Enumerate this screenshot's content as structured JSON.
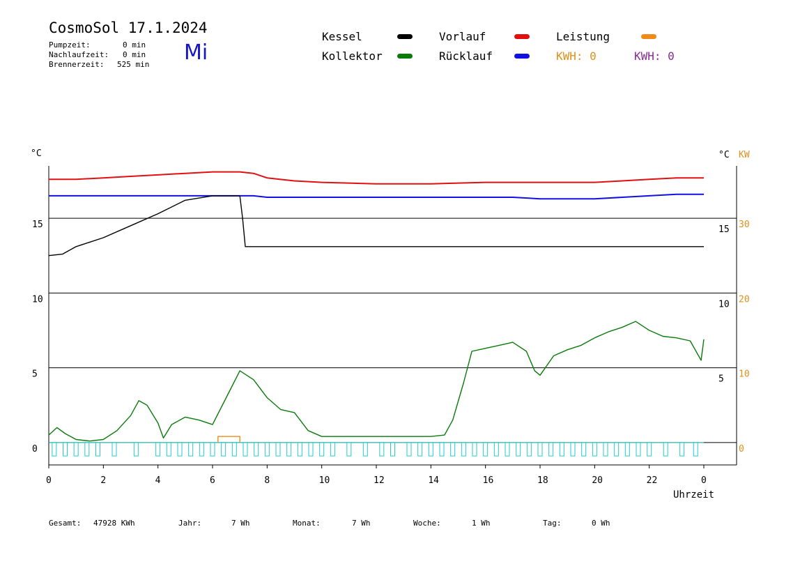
{
  "header": {
    "title": "CosmoSol 17.1.2024",
    "weekday": "Mi",
    "stats": [
      {
        "label": "Pumpzeit:",
        "value": "0 min"
      },
      {
        "label": "Nachlaufzeit:",
        "value": "0 min"
      },
      {
        "label": "Brennerzeit:",
        "value": "525 min"
      }
    ]
  },
  "legend": {
    "kessel": {
      "label": "Kessel",
      "color": "#000000"
    },
    "vorlauf": {
      "label": "Vorlauf",
      "color": "#e01010"
    },
    "leistung": {
      "label": "Leistung",
      "color": "#f08a18"
    },
    "kollektor": {
      "label": "Kollektor",
      "color": "#0a7a0a"
    },
    "ruecklauf": {
      "label": "Rücklauf",
      "color": "#1010e0"
    },
    "kwh_orange": "KWH: 0",
    "kwh_orange_color": "#e09018",
    "kwh_purple": "KWH: 0",
    "kwh_purple_color": "#8a2a9a"
  },
  "footer": {
    "gesamt_label": "Gesamt:",
    "gesamt_value": "47928 KWh",
    "jahr_label": "Jahr:",
    "jahr_value": "7 Wh",
    "monat_label": "Monat:",
    "monat_value": "7 Wh",
    "woche_label": "Woche:",
    "woche_value": "1 Wh",
    "tag_label": "Tag:",
    "tag_value": "0 Wh"
  },
  "chart_data": {
    "type": "line",
    "xlabel": "Uhrzeit",
    "ylabel_left": "°C",
    "ylabel_right_1": "°C",
    "ylabel_right_2": "KW",
    "xlim": [
      0,
      24
    ],
    "ylim": [
      -1.5,
      18.5
    ],
    "x_ticks": [
      "0",
      "2",
      "4",
      "6",
      "8",
      "10",
      "12",
      "14",
      "16",
      "18",
      "20",
      "22",
      "0"
    ],
    "y_ticks_left": [
      "0",
      "5",
      "10",
      "15"
    ],
    "y_ticks_right_temp": [
      "5",
      "10",
      "15"
    ],
    "y_ticks_right_kw": [
      "0",
      "10",
      "20",
      "30"
    ],
    "series": [
      {
        "name": "Vorlauf",
        "color": "#e01010",
        "x": [
          0,
          1,
          2,
          3,
          4,
          5,
          6,
          7,
          7.5,
          8,
          9,
          10,
          12,
          14,
          16,
          18,
          20,
          21,
          22,
          23,
          24
        ],
        "y": [
          17.6,
          17.6,
          17.7,
          17.8,
          17.9,
          18.0,
          18.1,
          18.1,
          18.0,
          17.7,
          17.5,
          17.4,
          17.3,
          17.3,
          17.4,
          17.4,
          17.4,
          17.5,
          17.6,
          17.7,
          17.7
        ]
      },
      {
        "name": "Rücklauf",
        "color": "#1010e0",
        "x": [
          0,
          2,
          4,
          6,
          7.5,
          8,
          10,
          12,
          14,
          16,
          17,
          18,
          19,
          20,
          22,
          23,
          24
        ],
        "y": [
          16.5,
          16.5,
          16.5,
          16.5,
          16.5,
          16.4,
          16.4,
          16.4,
          16.4,
          16.4,
          16.4,
          16.3,
          16.3,
          16.3,
          16.5,
          16.6,
          16.6
        ]
      },
      {
        "name": "Kessel",
        "color": "#000000",
        "x": [
          0,
          0.5,
          1,
          2,
          3,
          4,
          5,
          6,
          7,
          7.1,
          7.2,
          8,
          10,
          12,
          14,
          16,
          18,
          20,
          22,
          24
        ],
        "y": [
          12.5,
          12.6,
          13.1,
          13.7,
          14.5,
          15.3,
          16.2,
          16.5,
          16.5,
          15.0,
          13.1,
          13.1,
          13.1,
          13.1,
          13.1,
          13.1,
          13.1,
          13.1,
          13.1,
          13.1
        ]
      },
      {
        "name": "Kollektor",
        "color": "#0a7a0a",
        "x": [
          0,
          0.3,
          0.6,
          1,
          1.5,
          2,
          2.5,
          3,
          3.3,
          3.6,
          4,
          4.2,
          4.5,
          5,
          5.5,
          6,
          6.5,
          7,
          7.5,
          8,
          8.5,
          9,
          9.5,
          10,
          11,
          12,
          13,
          14,
          14.5,
          14.8,
          15.2,
          15.5,
          16,
          16.5,
          17,
          17.5,
          17.8,
          18,
          18.5,
          19,
          19.5,
          20,
          20.5,
          21,
          21.5,
          22,
          22.5,
          23,
          23.5,
          23.9,
          24
        ],
        "y": [
          0.5,
          1.0,
          0.6,
          0.2,
          0.1,
          0.2,
          0.8,
          1.8,
          2.8,
          2.5,
          1.3,
          0.3,
          1.2,
          1.7,
          1.5,
          1.2,
          3.0,
          4.8,
          4.2,
          3.0,
          2.2,
          2.0,
          0.8,
          0.4,
          0.4,
          0.4,
          0.4,
          0.4,
          0.5,
          1.5,
          4.0,
          6.1,
          6.3,
          6.5,
          6.7,
          6.1,
          4.8,
          4.5,
          5.8,
          6.2,
          6.5,
          7.0,
          7.4,
          7.7,
          8.1,
          7.5,
          7.1,
          7.0,
          6.8,
          5.5,
          6.9
        ]
      },
      {
        "name": "Leistung",
        "color": "#f08a18",
        "x": [
          6.2,
          6.2,
          7.0,
          7.0
        ],
        "y": [
          0,
          0.4,
          0.4,
          0
        ]
      },
      {
        "name": "",
        "color": "#22cccc",
        "x": [
          0.2,
          0.6,
          1.0,
          1.4,
          1.8,
          2.4,
          3.2,
          4.0,
          4.4,
          4.8,
          5.2,
          5.6,
          6.0,
          6.4,
          6.8,
          7.2,
          7.6,
          8.0,
          8.4,
          8.8,
          9.2,
          9.6,
          10.0,
          10.4,
          11.0,
          11.6,
          12.2,
          12.6,
          13.2,
          13.6,
          14.0,
          14.4,
          14.8,
          15.2,
          15.6,
          16.0,
          16.4,
          16.8,
          17.2,
          17.6,
          18.0,
          18.4,
          18.8,
          19.2,
          19.6,
          20.0,
          20.4,
          20.8,
          21.2,
          21.6,
          22.0,
          22.6,
          23.2,
          23.7
        ],
        "y": [
          -0.9,
          -0.9,
          -0.9,
          -0.9,
          -0.9,
          -0.9,
          -0.9,
          -0.9,
          -0.9,
          -0.9,
          -0.9,
          -0.9,
          -0.9,
          -0.9,
          -0.9,
          -0.9,
          -0.9,
          -0.9,
          -0.9,
          -0.9,
          -0.9,
          -0.9,
          -0.9,
          -0.9,
          -0.9,
          -0.9,
          -0.9,
          -0.9,
          -0.9,
          -0.9,
          -0.9,
          -0.9,
          -0.9,
          -0.9,
          -0.9,
          -0.9,
          -0.9,
          -0.9,
          -0.9,
          -0.9,
          -0.9,
          -0.9,
          -0.9,
          -0.9,
          -0.9,
          -0.9,
          -0.9,
          -0.9,
          -0.9,
          -0.9,
          -0.9,
          -0.9,
          -0.9,
          -0.9
        ]
      }
    ]
  }
}
